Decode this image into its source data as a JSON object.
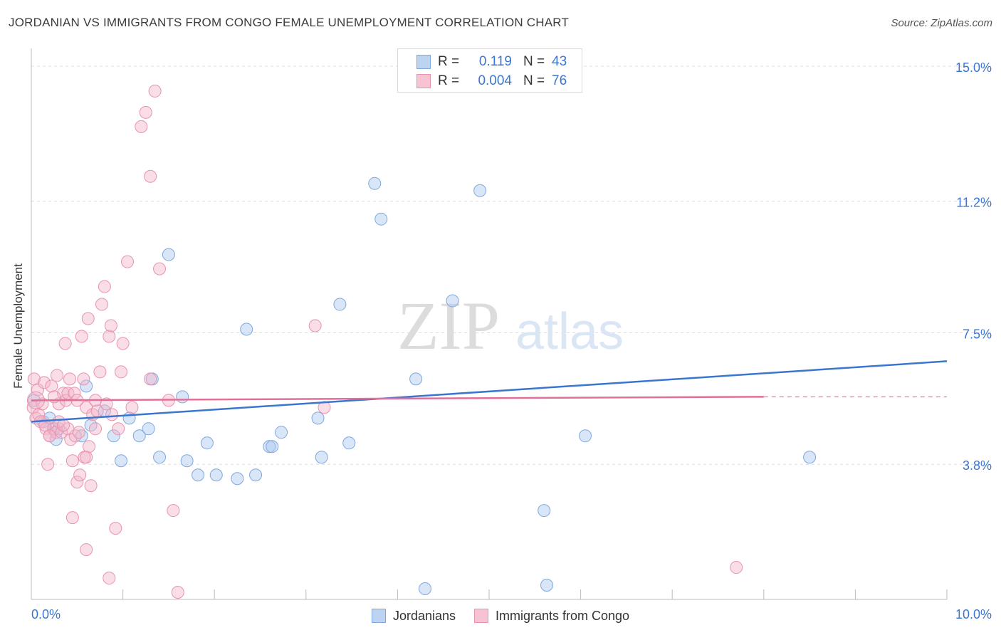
{
  "header": {
    "title": "JORDANIAN VS IMMIGRANTS FROM CONGO FEMALE UNEMPLOYMENT CORRELATION CHART",
    "source": "Source: ZipAtlas.com"
  },
  "legend": {
    "series": [
      {
        "r_label": "R =",
        "r_value": "0.119",
        "n_label": "N =",
        "n_value": "43"
      },
      {
        "r_label": "R =",
        "r_value": "0.004",
        "n_label": "N =",
        "n_value": "76"
      }
    ]
  },
  "bottom_legend": {
    "jordanians": "Jordanians",
    "congo": "Immigrants from Congo"
  },
  "colors": {
    "blue": "#3a76d0",
    "blue_fill": "#aac8ee",
    "pink": "#e0709a",
    "pink_fill": "#f4b6c9",
    "tick_label": "#3a76d0",
    "grid": "#dddddd",
    "watermark": "#e0e0e0"
  },
  "watermark": {
    "zip": "ZIP",
    "atlas": "atlas"
  },
  "chart_data": {
    "type": "scatter",
    "title": "JORDANIAN VS IMMIGRANTS FROM CONGO FEMALE UNEMPLOYMENT CORRELATION CHART",
    "xlabel": "",
    "ylabel": "Female Unemployment",
    "xlim": [
      0,
      10
    ],
    "ylim": [
      0,
      15.5
    ],
    "x_tick_labels": [
      "0.0%",
      "10.0%"
    ],
    "y_ticks": [
      3.8,
      7.5,
      11.2,
      15.0
    ],
    "y_tick_labels": [
      "3.8%",
      "7.5%",
      "11.2%",
      "15.0%"
    ],
    "series": [
      {
        "name": "Jordanians",
        "color": "#3a76d0",
        "trend": {
          "x": [
            0,
            10
          ],
          "y": [
            5.0,
            6.7
          ],
          "dashed_from": null
        },
        "points": [
          [
            0.03,
            5.6
          ],
          [
            0.13,
            5.0
          ],
          [
            0.2,
            5.1
          ],
          [
            0.24,
            4.8
          ],
          [
            0.27,
            4.5
          ],
          [
            0.3,
            4.8
          ],
          [
            0.55,
            4.6
          ],
          [
            0.6,
            6.0
          ],
          [
            0.65,
            4.9
          ],
          [
            0.8,
            5.3
          ],
          [
            0.9,
            4.6
          ],
          [
            0.98,
            3.9
          ],
          [
            1.07,
            5.1
          ],
          [
            1.18,
            4.6
          ],
          [
            1.28,
            4.8
          ],
          [
            1.32,
            6.2
          ],
          [
            1.4,
            4.0
          ],
          [
            1.5,
            9.7
          ],
          [
            1.65,
            5.7
          ],
          [
            1.7,
            3.9
          ],
          [
            1.82,
            3.5
          ],
          [
            1.92,
            4.4
          ],
          [
            2.02,
            3.5
          ],
          [
            2.25,
            3.4
          ],
          [
            2.35,
            7.6
          ],
          [
            2.45,
            3.5
          ],
          [
            2.6,
            4.3
          ],
          [
            2.63,
            4.3
          ],
          [
            2.73,
            4.7
          ],
          [
            3.13,
            5.1
          ],
          [
            3.17,
            4.0
          ],
          [
            3.37,
            8.3
          ],
          [
            3.47,
            4.4
          ],
          [
            3.75,
            11.7
          ],
          [
            3.82,
            10.7
          ],
          [
            4.2,
            6.2
          ],
          [
            4.3,
            0.3
          ],
          [
            4.6,
            8.4
          ],
          [
            4.9,
            11.5
          ],
          [
            5.6,
            2.5
          ],
          [
            5.63,
            0.4
          ],
          [
            6.05,
            4.6
          ],
          [
            8.5,
            4.0
          ]
        ]
      },
      {
        "name": "Immigrants from Congo",
        "color": "#e0709a",
        "trend": {
          "x": [
            0,
            8.0
          ],
          "y": [
            5.6,
            5.7
          ],
          "dashed_from": 8.0,
          "dashed_to_x": 10,
          "dashed_to_y": 5.7
        },
        "points": [
          [
            0.02,
            5.4
          ],
          [
            0.03,
            6.2
          ],
          [
            0.05,
            5.1
          ],
          [
            0.07,
            5.9
          ],
          [
            0.08,
            5.2
          ],
          [
            0.1,
            5.0
          ],
          [
            0.12,
            5.5
          ],
          [
            0.14,
            6.1
          ],
          [
            0.16,
            4.8
          ],
          [
            0.18,
            3.8
          ],
          [
            0.2,
            4.6
          ],
          [
            0.22,
            6.0
          ],
          [
            0.25,
            4.8
          ],
          [
            0.27,
            4.7
          ],
          [
            0.28,
            6.3
          ],
          [
            0.3,
            5.5
          ],
          [
            0.33,
            4.7
          ],
          [
            0.35,
            5.8
          ],
          [
            0.37,
            7.2
          ],
          [
            0.38,
            5.6
          ],
          [
            0.4,
            5.8
          ],
          [
            0.42,
            6.2
          ],
          [
            0.43,
            4.5
          ],
          [
            0.45,
            3.9
          ],
          [
            0.47,
            5.8
          ],
          [
            0.48,
            4.6
          ],
          [
            0.5,
            3.3
          ],
          [
            0.52,
            4.7
          ],
          [
            0.53,
            3.5
          ],
          [
            0.55,
            7.4
          ],
          [
            0.57,
            6.2
          ],
          [
            0.58,
            4.0
          ],
          [
            0.6,
            5.4
          ],
          [
            0.62,
            7.9
          ],
          [
            0.63,
            4.3
          ],
          [
            0.65,
            3.2
          ],
          [
            0.67,
            5.2
          ],
          [
            0.7,
            5.6
          ],
          [
            0.72,
            5.3
          ],
          [
            0.75,
            6.4
          ],
          [
            0.77,
            8.3
          ],
          [
            0.8,
            8.8
          ],
          [
            0.82,
            5.5
          ],
          [
            0.85,
            7.4
          ],
          [
            0.87,
            7.7
          ],
          [
            0.88,
            5.2
          ],
          [
            0.92,
            2.0
          ],
          [
            0.95,
            4.8
          ],
          [
            0.98,
            6.4
          ],
          [
            1.0,
            7.2
          ],
          [
            1.05,
            9.5
          ],
          [
            1.1,
            5.4
          ],
          [
            1.2,
            13.3
          ],
          [
            1.25,
            13.7
          ],
          [
            1.3,
            11.9
          ],
          [
            1.35,
            14.3
          ],
          [
            1.4,
            9.3
          ],
          [
            1.5,
            5.6
          ],
          [
            1.55,
            2.5
          ],
          [
            1.6,
            0.2
          ],
          [
            0.45,
            2.3
          ],
          [
            0.6,
            1.4
          ],
          [
            0.85,
            0.6
          ],
          [
            1.3,
            6.2
          ],
          [
            3.1,
            7.7
          ],
          [
            3.2,
            5.4
          ],
          [
            7.7,
            0.9
          ],
          [
            0.2,
            4.6
          ],
          [
            0.3,
            5.0
          ],
          [
            0.4,
            4.8
          ],
          [
            0.5,
            5.6
          ],
          [
            0.6,
            4.0
          ],
          [
            0.25,
            5.7
          ],
          [
            0.35,
            4.9
          ],
          [
            0.7,
            4.8
          ],
          [
            0.15,
            4.9
          ]
        ]
      }
    ]
  }
}
